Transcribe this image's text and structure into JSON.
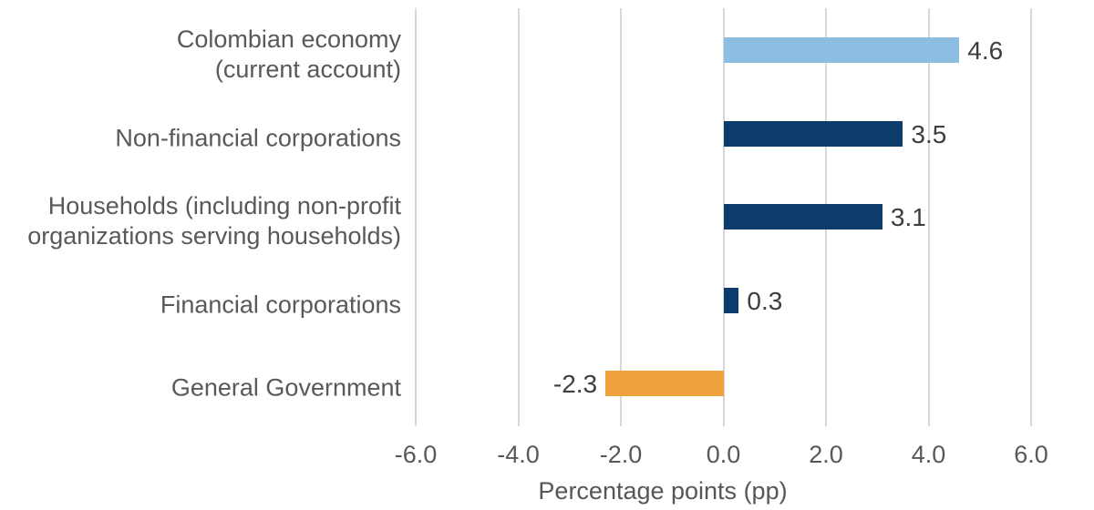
{
  "chart_data": {
    "type": "bar",
    "orientation": "horizontal",
    "title": "",
    "xlabel": "Percentage points (pp)",
    "ylabel": "",
    "categories": [
      "Colombian economy\n(current account)",
      "Non-financial corporations",
      "Households (including non-profit\norganizations serving households)",
      "Financial corporations",
      "General Government"
    ],
    "values": [
      4.6,
      3.5,
      3.1,
      0.3,
      -2.3
    ],
    "value_labels": [
      "4.6",
      "3.5",
      "3.1",
      "0.3",
      "-2.3"
    ],
    "bar_colors": [
      "#8cbee2",
      "#0d3c6c",
      "#0d3c6c",
      "#0d3c6c",
      "#f0a13d"
    ],
    "x_ticks": [
      -6,
      -4,
      -2,
      0,
      2,
      4,
      6
    ],
    "x_tick_labels": [
      "-6.0",
      "-4.0",
      "-2.0",
      "0.0",
      "2.0",
      "4.0",
      "6.0"
    ],
    "xlim": [
      -6.3,
      7.2
    ],
    "grid": "vertical",
    "legend": "none",
    "colors": {
      "light_blue": "#8cbee2",
      "dark_blue": "#0d3c6c",
      "orange": "#f0a13d",
      "gridline": "#d8d8d8",
      "category_text": "#59595b",
      "tick_text": "#58585a",
      "value_text": "#3e3e40",
      "background": "#ffffff"
    }
  }
}
